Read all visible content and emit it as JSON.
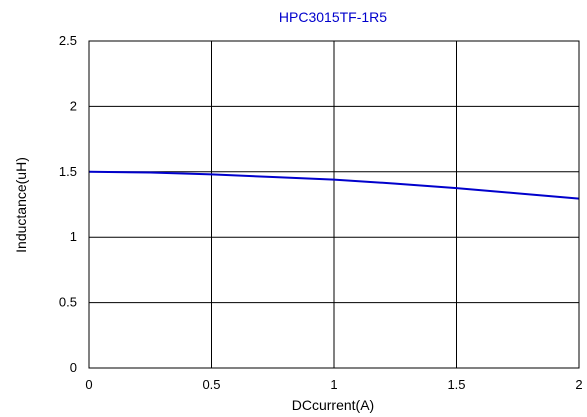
{
  "chart_data": {
    "type": "line",
    "title": "HPC3015TF-1R5",
    "xlabel": "DCcurrent(A)",
    "ylabel": "Inductance(uH)",
    "xlim": [
      0,
      2
    ],
    "ylim": [
      0,
      2.5
    ],
    "x_ticks": [
      0,
      0.5,
      1,
      1.5,
      2
    ],
    "x_tick_labels": [
      "0",
      "0.5",
      "1",
      "1.5",
      "2"
    ],
    "y_ticks": [
      0,
      0.5,
      1,
      1.5,
      2,
      2.5
    ],
    "y_tick_labels": [
      "0",
      "0.5",
      "1",
      "1.5",
      "2",
      "2.5"
    ],
    "grid": true,
    "series": [
      {
        "color": "#0000cc",
        "x": [
          0,
          0.25,
          0.5,
          0.75,
          1.0,
          1.25,
          1.5,
          1.75,
          2.0
        ],
        "y": [
          1.5,
          1.495,
          1.48,
          1.46,
          1.44,
          1.41,
          1.375,
          1.335,
          1.295
        ]
      }
    ]
  },
  "colors": {
    "title": "#0000cc",
    "line": "#0000cc",
    "grid": "#000000",
    "background": "#ffffff"
  }
}
